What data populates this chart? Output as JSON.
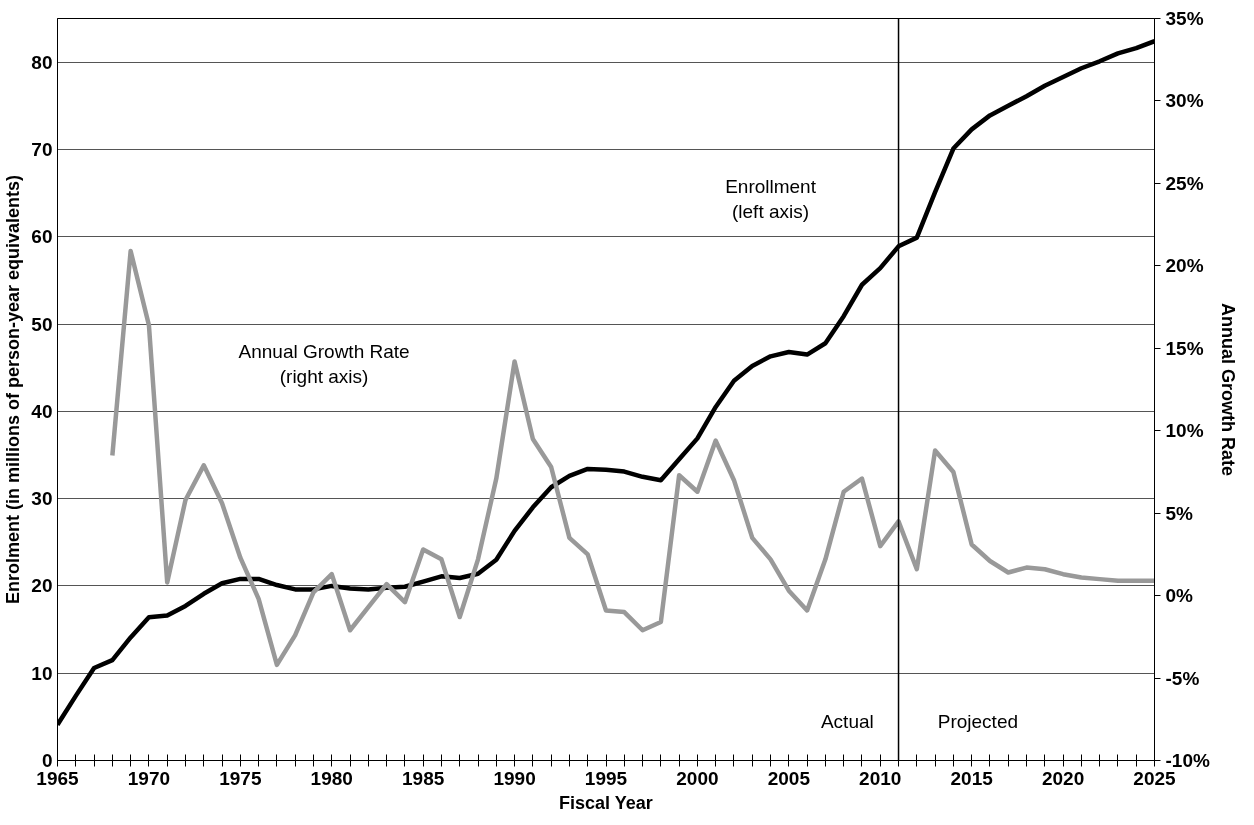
{
  "chart_data": {
    "type": "line",
    "xlabel": "Fiscal Year",
    "ylabel": "Enrolment (in millions of person-year equivalents)",
    "y2label": "Annual Growth Rate",
    "x": [
      1965,
      1966,
      1967,
      1968,
      1969,
      1970,
      1971,
      1972,
      1973,
      1974,
      1975,
      1976,
      1977,
      1978,
      1979,
      1980,
      1981,
      1982,
      1983,
      1984,
      1985,
      1986,
      1987,
      1988,
      1989,
      1990,
      1991,
      1992,
      1993,
      1994,
      1995,
      1996,
      1997,
      1998,
      1999,
      2000,
      2001,
      2002,
      2003,
      2004,
      2005,
      2006,
      2007,
      2008,
      2009,
      2010,
      2011,
      2012,
      2013,
      2014,
      2015,
      2016,
      2017,
      2018,
      2019,
      2020,
      2021,
      2022,
      2023,
      2024,
      2025
    ],
    "series": [
      {
        "color": "#000000",
        "values": [
          4.1,
          7.4,
          10.6,
          11.5,
          14.1,
          16.4,
          16.6,
          17.7,
          19.1,
          20.3,
          20.8,
          20.8,
          20.1,
          19.6,
          19.6,
          20.0,
          19.7,
          19.6,
          19.8,
          19.9,
          20.5,
          21.1,
          20.9,
          21.4,
          23.0,
          26.3,
          29.0,
          31.3,
          32.6,
          33.4,
          33.3,
          33.1,
          32.5,
          32.1,
          34.5,
          36.9,
          40.5,
          43.5,
          45.2,
          46.3,
          46.8,
          46.5,
          47.8,
          50.9,
          54.5,
          56.4,
          58.9,
          59.9,
          65.1,
          70.1,
          72.3,
          73.9,
          75.0,
          76.1,
          77.3,
          78.3,
          79.3,
          80.1,
          81.0,
          81.6,
          82.4
        ]
      },
      {
        "color": "#999999",
        "axis": "y2",
        "values": [
          null,
          null,
          null,
          8.5,
          20.9,
          16.4,
          0.8,
          5.8,
          7.9,
          5.6,
          2.3,
          -0.2,
          -4.2,
          -2.4,
          0.2,
          1.3,
          -2.1,
          -0.7,
          0.7,
          -0.4,
          2.8,
          2.2,
          -1.3,
          2.2,
          7.1,
          14.2,
          9.5,
          7.8,
          3.5,
          2.5,
          -0.9,
          -1.0,
          -2.1,
          -1.6,
          7.3,
          6.3,
          9.4,
          7.0,
          3.5,
          2.2,
          0.3,
          -0.9,
          2.2,
          6.3,
          7.1,
          3.0,
          4.5,
          1.6,
          8.8,
          7.5,
          3.1,
          2.1,
          1.4,
          1.7,
          1.6,
          1.3,
          1.1,
          1.0,
          0.9,
          0.9,
          0.9
        ]
      }
    ],
    "xlim": [
      1965,
      2025
    ],
    "xticks": [
      1965,
      {
        "value": 1966,
        "label": null
      },
      {
        "value": 1967,
        "label": null
      },
      {
        "value": 1968,
        "label": null
      },
      {
        "value": 1969,
        "label": null
      },
      1970,
      {
        "value": 1971,
        "label": null
      },
      {
        "value": 1972,
        "label": null
      },
      {
        "value": 1973,
        "label": null
      },
      {
        "value": 1974,
        "label": null
      },
      1975,
      {
        "value": 1976,
        "label": null
      },
      {
        "value": 1977,
        "label": null
      },
      {
        "value": 1978,
        "label": null
      },
      {
        "value": 1979,
        "label": null
      },
      1980,
      {
        "value": 1981,
        "label": null
      },
      {
        "value": 1982,
        "label": null
      },
      {
        "value": 1983,
        "label": null
      },
      {
        "value": 1984,
        "label": null
      },
      1985,
      {
        "value": 1986,
        "label": null
      },
      {
        "value": 1987,
        "label": null
      },
      {
        "value": 1988,
        "label": null
      },
      {
        "value": 1989,
        "label": null
      },
      1990,
      {
        "value": 1991,
        "label": null
      },
      {
        "value": 1992,
        "label": null
      },
      {
        "value": 1993,
        "label": null
      },
      {
        "value": 1994,
        "label": null
      },
      1995,
      {
        "value": 1996,
        "label": null
      },
      {
        "value": 1997,
        "label": null
      },
      {
        "value": 1998,
        "label": null
      },
      {
        "value": 1999,
        "label": null
      },
      2000,
      {
        "value": 2001,
        "label": null
      },
      {
        "value": 2002,
        "label": null
      },
      {
        "value": 2003,
        "label": null
      },
      {
        "value": 2004,
        "label": null
      },
      2005,
      {
        "value": 2006,
        "label": null
      },
      {
        "value": 2007,
        "label": null
      },
      {
        "value": 2008,
        "label": null
      },
      {
        "value": 2009,
        "label": null
      },
      2010,
      {
        "value": 2011,
        "label": null
      },
      {
        "value": 2012,
        "label": null
      },
      {
        "value": 2013,
        "label": null
      },
      {
        "value": 2014,
        "label": null
      },
      2015,
      {
        "value": 2016,
        "label": null
      },
      {
        "value": 2017,
        "label": null
      },
      {
        "value": 2018,
        "label": null
      },
      {
        "value": 2019,
        "label": null
      },
      2020,
      {
        "value": 2021,
        "label": null
      },
      {
        "value": 2022,
        "label": null
      },
      {
        "value": 2023,
        "label": null
      },
      {
        "value": 2024,
        "label": null
      },
      2025
    ],
    "ylim": [
      0,
      85
    ],
    "yticks": [
      0,
      10,
      20,
      30,
      40,
      50,
      60,
      70,
      80
    ],
    "y2lim": [
      -10,
      35
    ],
    "y2ticks": [
      {
        "value": -10,
        "label": "-10%"
      },
      {
        "value": -5,
        "label": "-5%"
      },
      {
        "value": 0,
        "label": "0%"
      },
      {
        "value": 5,
        "label": "5%"
      },
      {
        "value": 10,
        "label": "10%"
      },
      {
        "value": 15,
        "label": "15%"
      },
      {
        "value": 20,
        "label": "20%"
      },
      {
        "value": 25,
        "label": "25%"
      },
      {
        "value": 30,
        "label": "30%"
      },
      {
        "value": 35,
        "label": "35%"
      }
    ],
    "grid": "y",
    "ref_lines": [
      {
        "axis": "x",
        "value": 2011,
        "color": "#000000"
      }
    ],
    "annotations": [
      "Enrollment\n(left axis)",
      "Annual Growth Rate\n(right axis)",
      "Actual",
      "Projected"
    ]
  }
}
